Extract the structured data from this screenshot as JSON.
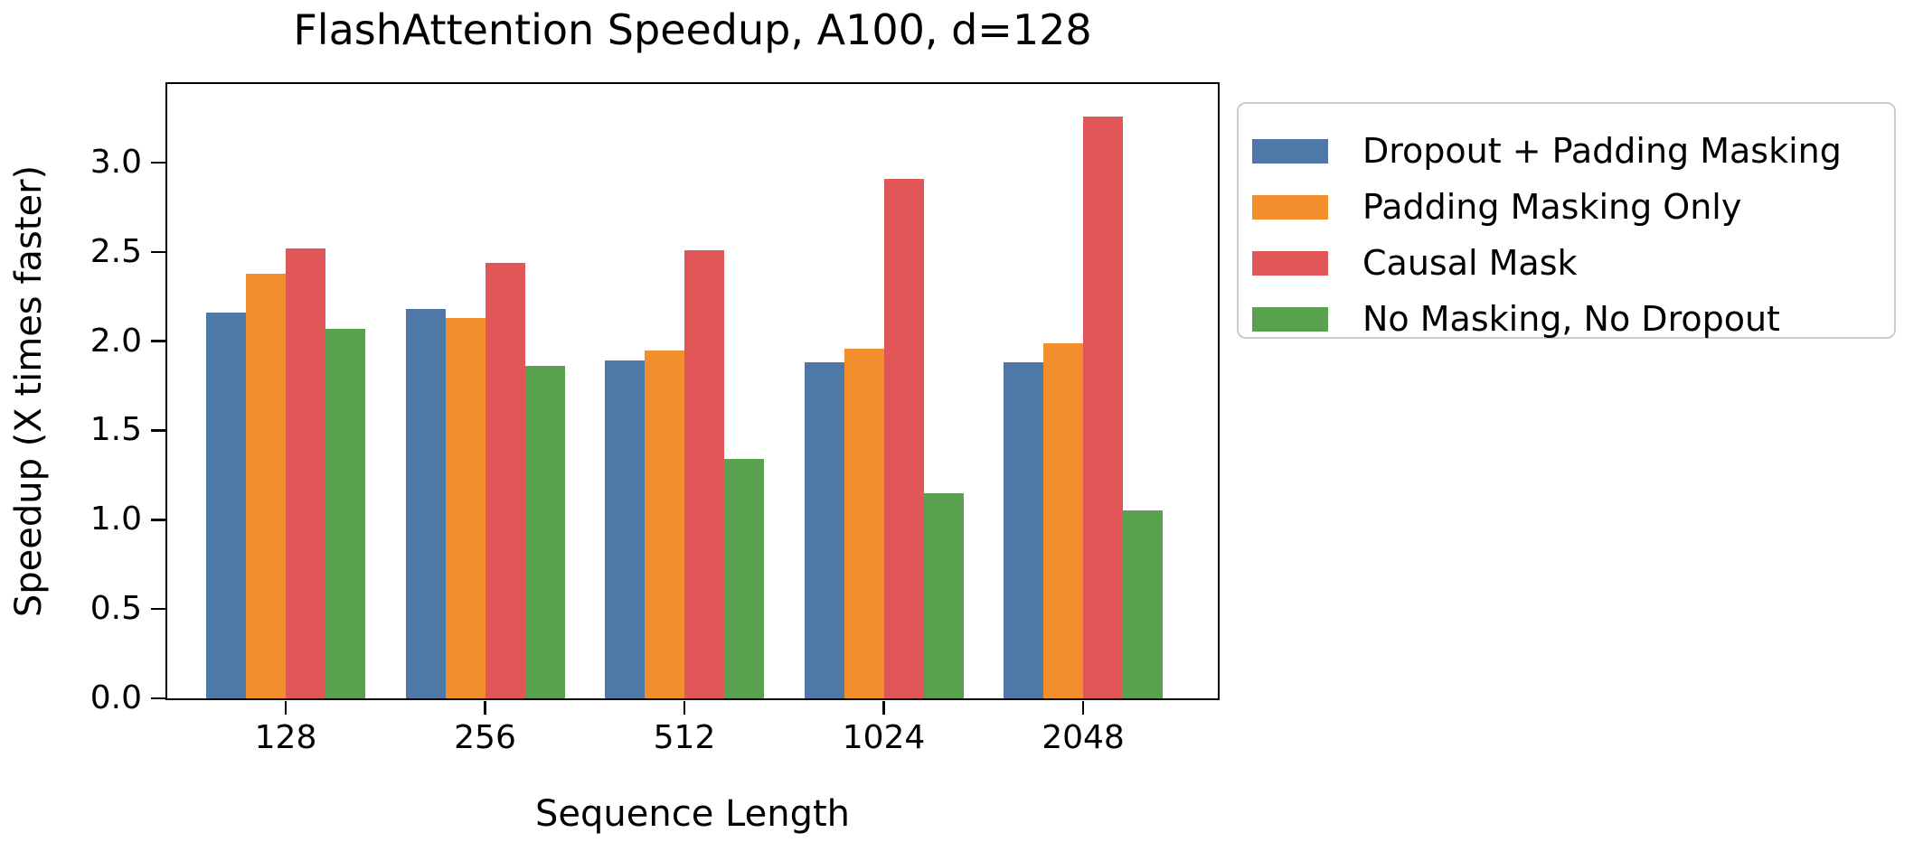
{
  "chart_data": {
    "type": "bar",
    "title": "FlashAttention Speedup, A100, d=128",
    "xlabel": "Sequence Length",
    "ylabel": "Speedup (X times faster)",
    "categories": [
      "128",
      "256",
      "512",
      "1024",
      "2048"
    ],
    "series": [
      {
        "name": "Dropout + Padding Masking",
        "color": "#4E79A7",
        "values": [
          2.16,
          2.18,
          1.89,
          1.88,
          1.88
        ]
      },
      {
        "name": "Padding Masking Only",
        "color": "#F28E2B",
        "values": [
          2.38,
          2.13,
          1.95,
          1.96,
          1.99
        ]
      },
      {
        "name": "Causal Mask",
        "color": "#E15759",
        "values": [
          2.52,
          2.44,
          2.51,
          2.91,
          3.26
        ]
      },
      {
        "name": "No Masking, No Dropout",
        "color": "#59A14F",
        "values": [
          2.07,
          1.86,
          1.34,
          1.15,
          1.05
        ]
      }
    ],
    "ylim": [
      0,
      3.44
    ],
    "y_ticks": [
      "0.0",
      "0.5",
      "1.0",
      "1.5",
      "2.0",
      "2.5",
      "3.0"
    ],
    "grid": false,
    "legend_position": "outside-upper-right"
  }
}
